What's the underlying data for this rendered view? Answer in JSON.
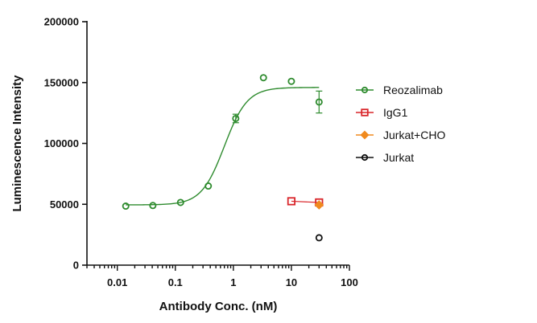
{
  "chart_data": {
    "type": "scatter",
    "title": "",
    "xlabel": "Antibody Conc. (nM)",
    "ylabel": "Luminescence Intensity",
    "x_scale": "log",
    "xlim": [
      0.003,
      100
    ],
    "ylim": [
      0,
      200000
    ],
    "x_tick_values": [
      0.01,
      0.1,
      1,
      10,
      100
    ],
    "x_tick_labels": [
      "0.01",
      "0.1",
      "1",
      "10",
      "100"
    ],
    "y_tick_values": [
      0,
      50000,
      100000,
      150000,
      200000
    ],
    "y_tick_labels": [
      "0",
      "50000",
      "100000",
      "150000",
      "200000"
    ],
    "grid": false,
    "legend_position": "right",
    "series": [
      {
        "name": "Reozalimab",
        "color": "#2e8b2e",
        "marker": "circle",
        "fit_curve": true,
        "fit": {
          "bottom": 49500,
          "top": 146000,
          "ec50": 0.7,
          "hill": 2.2,
          "x_range": [
            0.014,
            30
          ]
        },
        "points": [
          {
            "x": 0.014,
            "y": 48500
          },
          {
            "x": 0.041,
            "y": 49000
          },
          {
            "x": 0.123,
            "y": 51500
          },
          {
            "x": 0.37,
            "y": 65000
          },
          {
            "x": 1.1,
            "y": 120500,
            "err": 3500
          },
          {
            "x": 3.3,
            "y": 154000
          },
          {
            "x": 10,
            "y": 151000
          },
          {
            "x": 30,
            "y": 134000,
            "err": 9000
          }
        ]
      },
      {
        "name": "IgG1",
        "color": "#d9262b",
        "marker": "square",
        "connect": true,
        "points": [
          {
            "x": 10,
            "y": 52500
          },
          {
            "x": 30,
            "y": 51500
          }
        ]
      },
      {
        "name": "Jurkat+CHO",
        "color": "#f08a1e",
        "marker": "diamond",
        "points": [
          {
            "x": 30,
            "y": 49500
          }
        ]
      },
      {
        "name": "Jurkat",
        "color": "#111111",
        "marker": "circle",
        "points": [
          {
            "x": 30,
            "y": 22500
          }
        ]
      }
    ]
  }
}
